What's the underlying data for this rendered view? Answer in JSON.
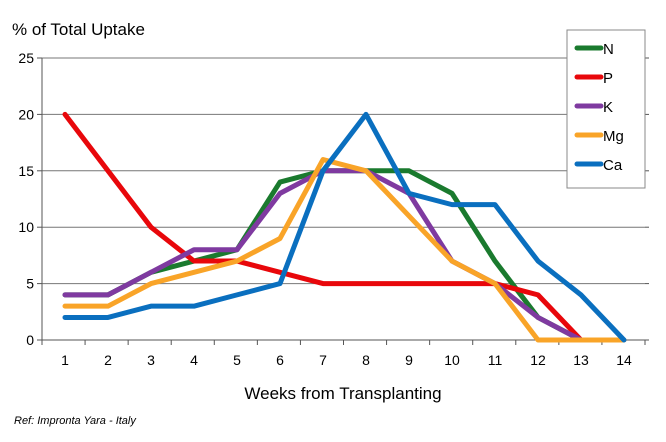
{
  "chart_data": {
    "type": "line",
    "title": "",
    "ylabel": "% of Total Uptake",
    "xlabel": "Weeks from Transplanting",
    "x": [
      1,
      2,
      3,
      4,
      5,
      6,
      7,
      8,
      9,
      10,
      11,
      12,
      13,
      14
    ],
    "ylim": [
      0,
      25
    ],
    "yticks": [
      0,
      5,
      10,
      15,
      20,
      25
    ],
    "grid": true,
    "legend": "top-right",
    "series": [
      {
        "name": "N",
        "color": "#1a7a2e",
        "values": [
          4,
          4,
          6,
          7,
          8,
          14,
          15,
          15,
          15,
          13,
          7,
          2,
          0,
          null
        ]
      },
      {
        "name": "P",
        "color": "#e8070b",
        "values": [
          20,
          15,
          10,
          7,
          7,
          6,
          5,
          5,
          5,
          5,
          5,
          4,
          0,
          null
        ]
      },
      {
        "name": "K",
        "color": "#7f3aa0",
        "values": [
          4,
          4,
          6,
          8,
          8,
          13,
          15,
          15,
          13,
          7,
          5,
          2,
          0,
          null
        ]
      },
      {
        "name": "Mg",
        "color": "#f9a428",
        "values": [
          3,
          3,
          5,
          6,
          7,
          9,
          16,
          15,
          11,
          7,
          5,
          0,
          0,
          0
        ]
      },
      {
        "name": "Ca",
        "color": "#0a6fbf",
        "values": [
          2,
          2,
          3,
          3,
          4,
          5,
          15,
          20,
          13,
          12,
          12,
          7,
          4,
          0
        ]
      }
    ]
  },
  "reference": "Ref: Impronta Yara - Italy"
}
